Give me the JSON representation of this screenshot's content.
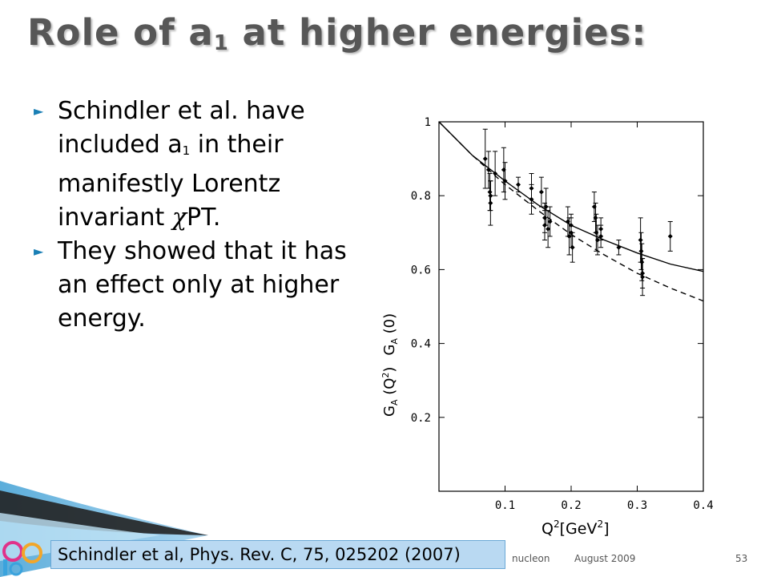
{
  "slide": {
    "title_main": "Role of a",
    "title_sub": "1",
    "title_rest": " at higher energies:",
    "bullets": [
      {
        "pre": "Schindler et al. have included a",
        "sub": "1",
        "post": " in their manifestly Lorentz invariant ",
        "chi": "χ",
        "tail": "PT."
      },
      {
        "text": "They showed that it has an effect only at higher energy."
      }
    ],
    "citation": "Schindler et al, Phys. Rev. C, 75, 025202 (2007)",
    "footer_fragment": "nucleon",
    "footer_date": "August 2009",
    "page_number": "53"
  },
  "colors": {
    "accent": "#1a7fb5",
    "citation_bg": "#b9d9f2",
    "title": "#575757"
  },
  "icons": {
    "bullet": "right-triangle-arrow-icon"
  },
  "chart_data": {
    "type": "scatter",
    "y_tick_labels": [
      "1",
      "0.8",
      "0.6",
      "0.4",
      "0.2"
    ],
    "x_tick_labels": [
      "0.1",
      "0.2",
      "0.3",
      "0.4"
    ],
    "y_ticks": [
      1,
      0.8,
      0.6,
      0.4,
      0.2
    ],
    "x_ticks": [
      0.1,
      0.2,
      0.3,
      0.4
    ],
    "xlim": [
      0,
      0.4
    ],
    "ylim": [
      0,
      1
    ],
    "ylabel_left": "G_A(Q^2)",
    "ylabel_right": "G_A(0)",
    "xlabel": "Q^2[GeV^2]",
    "series": [
      {
        "style": "solid",
        "x": [
          0,
          0.05,
          0.1,
          0.15,
          0.2,
          0.25,
          0.3,
          0.35,
          0.4
        ],
        "y": [
          1.0,
          0.91,
          0.84,
          0.775,
          0.72,
          0.68,
          0.645,
          0.615,
          0.595
        ]
      },
      {
        "style": "dashed",
        "x": [
          0,
          0.05,
          0.1,
          0.15,
          0.2,
          0.25,
          0.3,
          0.35,
          0.4
        ],
        "y": [
          1.0,
          0.91,
          0.83,
          0.76,
          0.695,
          0.64,
          0.59,
          0.55,
          0.515
        ]
      }
    ],
    "points": [
      {
        "x": 0.07,
        "y": 0.9,
        "err": 0.08
      },
      {
        "x": 0.075,
        "y": 0.87,
        "err": 0.05
      },
      {
        "x": 0.077,
        "y": 0.81,
        "err": 0.05
      },
      {
        "x": 0.078,
        "y": 0.78,
        "err": 0.06
      },
      {
        "x": 0.078,
        "y": 0.8,
        "err": 0.04
      },
      {
        "x": 0.085,
        "y": 0.86,
        "err": 0.06
      },
      {
        "x": 0.098,
        "y": 0.87,
        "err": 0.06
      },
      {
        "x": 0.1,
        "y": 0.84,
        "err": 0.05
      },
      {
        "x": 0.12,
        "y": 0.83,
        "err": 0.02
      },
      {
        "x": 0.14,
        "y": 0.82,
        "err": 0.04
      },
      {
        "x": 0.14,
        "y": 0.79,
        "err": 0.04
      },
      {
        "x": 0.155,
        "y": 0.81,
        "err": 0.04
      },
      {
        "x": 0.16,
        "y": 0.74,
        "err": 0.04
      },
      {
        "x": 0.16,
        "y": 0.72,
        "err": 0.04
      },
      {
        "x": 0.162,
        "y": 0.77,
        "err": 0.05
      },
      {
        "x": 0.165,
        "y": 0.71,
        "err": 0.05
      },
      {
        "x": 0.168,
        "y": 0.73,
        "err": 0.04
      },
      {
        "x": 0.195,
        "y": 0.73,
        "err": 0.04
      },
      {
        "x": 0.197,
        "y": 0.69,
        "err": 0.05
      },
      {
        "x": 0.2,
        "y": 0.7,
        "err": 0.04
      },
      {
        "x": 0.2,
        "y": 0.72,
        "err": 0.03
      },
      {
        "x": 0.202,
        "y": 0.66,
        "err": 0.04
      },
      {
        "x": 0.235,
        "y": 0.77,
        "err": 0.04
      },
      {
        "x": 0.237,
        "y": 0.74,
        "err": 0.04
      },
      {
        "x": 0.238,
        "y": 0.7,
        "err": 0.05
      },
      {
        "x": 0.24,
        "y": 0.68,
        "err": 0.04
      },
      {
        "x": 0.245,
        "y": 0.71,
        "err": 0.03
      },
      {
        "x": 0.245,
        "y": 0.69,
        "err": 0.03
      },
      {
        "x": 0.272,
        "y": 0.66,
        "err": 0.02
      },
      {
        "x": 0.305,
        "y": 0.68,
        "err": 0.06
      },
      {
        "x": 0.306,
        "y": 0.65,
        "err": 0.05
      },
      {
        "x": 0.307,
        "y": 0.62,
        "err": 0.05
      },
      {
        "x": 0.308,
        "y": 0.58,
        "err": 0.05
      },
      {
        "x": 0.308,
        "y": 0.59,
        "err": 0.04
      },
      {
        "x": 0.35,
        "y": 0.69,
        "err": 0.04
      }
    ]
  }
}
